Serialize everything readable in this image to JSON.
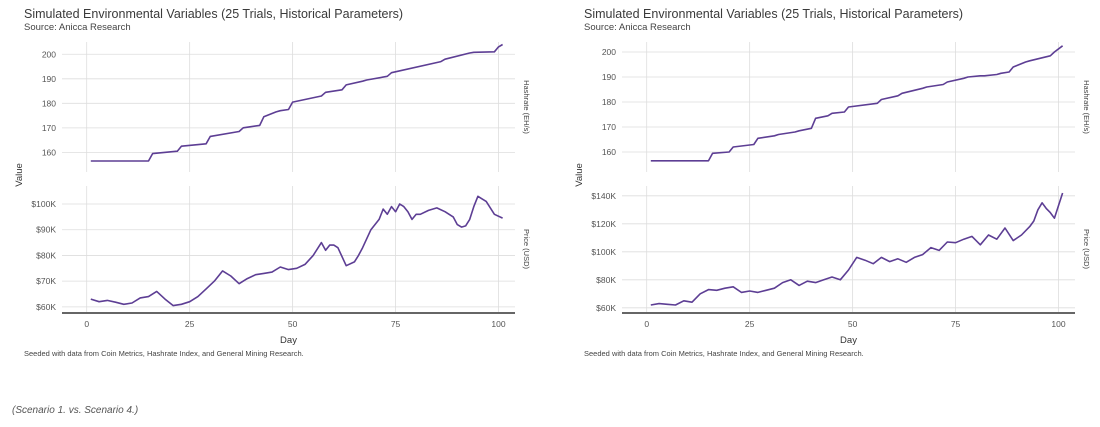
{
  "caption": "(Scenario 1. vs. Scenario 4.)",
  "colors": {
    "line": "#5d3e94",
    "grid": "#dddddd",
    "axis": "#333333",
    "tick": "#555555"
  },
  "chart_data": [
    {
      "type": "line",
      "title": "Simulated Environmental Variables (25 Trials, Historical Parameters)",
      "subtitle": "Source: Anicca Research",
      "footnote": "Seeded with data from Coin Metrics, Hashrate Index, and General Mining Research.",
      "xlabel": "Day",
      "ylabel": "Value",
      "xlim": [
        -6,
        104
      ],
      "xticks": [
        0,
        25,
        50,
        75,
        100
      ],
      "grid": true,
      "facets": [
        {
          "label": "Hashrate (EH/s)",
          "ylim": [
            152,
            205
          ],
          "yticks": [
            160,
            170,
            180,
            190,
            200
          ],
          "tick_labels": [
            "160",
            "170",
            "180",
            "190",
            "200"
          ],
          "x": [
            1,
            15,
            16,
            22,
            23,
            29,
            30,
            37,
            38,
            42,
            43,
            46,
            47,
            49,
            50,
            57,
            58,
            62,
            63,
            67,
            68,
            73,
            74,
            86,
            87,
            93,
            94,
            99,
            100,
            101
          ],
          "values": [
            156.5,
            156.5,
            159.5,
            160.5,
            162.5,
            163.5,
            166.5,
            168.5,
            170.0,
            171.0,
            174.5,
            176.5,
            177.0,
            177.5,
            180.5,
            183.0,
            184.5,
            185.5,
            187.5,
            189.0,
            189.5,
            191.0,
            192.5,
            197.0,
            198.0,
            200.5,
            200.8,
            201.0,
            203.0,
            204.0
          ]
        },
        {
          "label": "Price (USD)",
          "ylim": [
            58000,
            107000
          ],
          "yticks": [
            60000,
            70000,
            80000,
            90000,
            100000
          ],
          "tick_labels": [
            "$60K",
            "$70K",
            "$80K",
            "$90K",
            "$100K"
          ],
          "x": [
            1,
            3,
            5,
            7,
            9,
            11,
            13,
            15,
            17,
            19,
            21,
            23,
            25,
            27,
            29,
            31,
            33,
            35,
            37,
            39,
            41,
            43,
            45,
            47,
            49,
            51,
            53,
            55,
            57,
            58,
            59,
            60,
            61,
            63,
            65,
            66,
            67,
            69,
            71,
            72,
            73,
            74,
            75,
            76,
            77,
            78,
            79,
            80,
            81,
            83,
            85,
            87,
            89,
            90,
            91,
            92,
            93,
            94,
            95,
            96,
            97,
            99,
            101
          ],
          "values": [
            63000,
            62000,
            62500,
            61800,
            61000,
            61500,
            63500,
            64000,
            66000,
            63000,
            60500,
            61000,
            62000,
            64000,
            67000,
            70000,
            74000,
            72000,
            69000,
            71000,
            72500,
            73000,
            73500,
            75500,
            74500,
            75000,
            76500,
            80000,
            85000,
            82000,
            84000,
            84000,
            83000,
            76000,
            77500,
            80000,
            83000,
            90000,
            94000,
            98000,
            96000,
            99000,
            97000,
            100000,
            99000,
            97000,
            94000,
            96000,
            96000,
            97500,
            98500,
            97000,
            95000,
            92000,
            91000,
            91500,
            94000,
            99000,
            103000,
            102000,
            101000,
            96000,
            94500
          ]
        }
      ]
    },
    {
      "type": "line",
      "title": "Simulated Environmental Variables (25 Trials, Historical Parameters)",
      "subtitle": "Source: Anicca Research",
      "footnote": "Seeded with data from Coin Metrics, Hashrate Index, and General Mining Research.",
      "xlabel": "Day",
      "ylabel": "Value",
      "xlim": [
        -6,
        104
      ],
      "xticks": [
        0,
        25,
        50,
        75,
        100
      ],
      "grid": true,
      "facets": [
        {
          "label": "Hashrate (EH/s)",
          "ylim": [
            152,
            204
          ],
          "yticks": [
            160,
            170,
            180,
            190,
            200
          ],
          "tick_labels": [
            "160",
            "170",
            "180",
            "190",
            "200"
          ],
          "x": [
            1,
            15,
            16,
            20,
            21,
            26,
            27,
            31,
            32,
            36,
            37,
            40,
            41,
            44,
            45,
            48,
            49,
            56,
            57,
            61,
            62,
            67,
            68,
            72,
            73,
            77,
            78,
            81,
            82,
            85,
            86,
            88,
            89,
            92,
            93,
            98,
            99,
            101
          ],
          "values": [
            156.5,
            156.5,
            159.5,
            160.0,
            162.0,
            163.0,
            165.5,
            166.5,
            167.0,
            168.0,
            168.5,
            169.5,
            173.5,
            174.5,
            175.5,
            176.0,
            178.0,
            179.5,
            181.0,
            182.5,
            183.5,
            185.5,
            186.0,
            187.0,
            188.0,
            189.5,
            190.0,
            190.5,
            190.5,
            191.0,
            191.5,
            192.0,
            194.0,
            196.0,
            196.5,
            198.5,
            200.0,
            202.5
          ]
        },
        {
          "label": "Price (USD)",
          "ylim": [
            57000,
            147000
          ],
          "yticks": [
            60000,
            80000,
            100000,
            120000,
            140000
          ],
          "tick_labels": [
            "$60K",
            "$80K",
            "$100K",
            "$120K",
            "$140K"
          ],
          "x": [
            1,
            3,
            5,
            7,
            9,
            11,
            13,
            15,
            17,
            19,
            21,
            23,
            25,
            27,
            29,
            31,
            33,
            35,
            37,
            39,
            41,
            43,
            45,
            47,
            49,
            51,
            53,
            55,
            57,
            59,
            61,
            63,
            65,
            67,
            69,
            71,
            73,
            75,
            77,
            79,
            81,
            83,
            85,
            87,
            89,
            91,
            93,
            94,
            95,
            96,
            97,
            98,
            99,
            101
          ],
          "values": [
            62000,
            63000,
            62500,
            62000,
            65000,
            64000,
            70000,
            73000,
            72500,
            74000,
            75000,
            71000,
            72000,
            71000,
            72500,
            74000,
            78000,
            80000,
            76000,
            79000,
            78000,
            80000,
            82000,
            80000,
            87000,
            96000,
            94000,
            91500,
            96000,
            93000,
            95000,
            92500,
            96000,
            98000,
            103000,
            101000,
            107000,
            106500,
            109000,
            111000,
            105000,
            112000,
            109000,
            117000,
            108000,
            112000,
            118000,
            122000,
            130000,
            135000,
            131000,
            128000,
            124000,
            142000
          ]
        }
      ]
    }
  ]
}
